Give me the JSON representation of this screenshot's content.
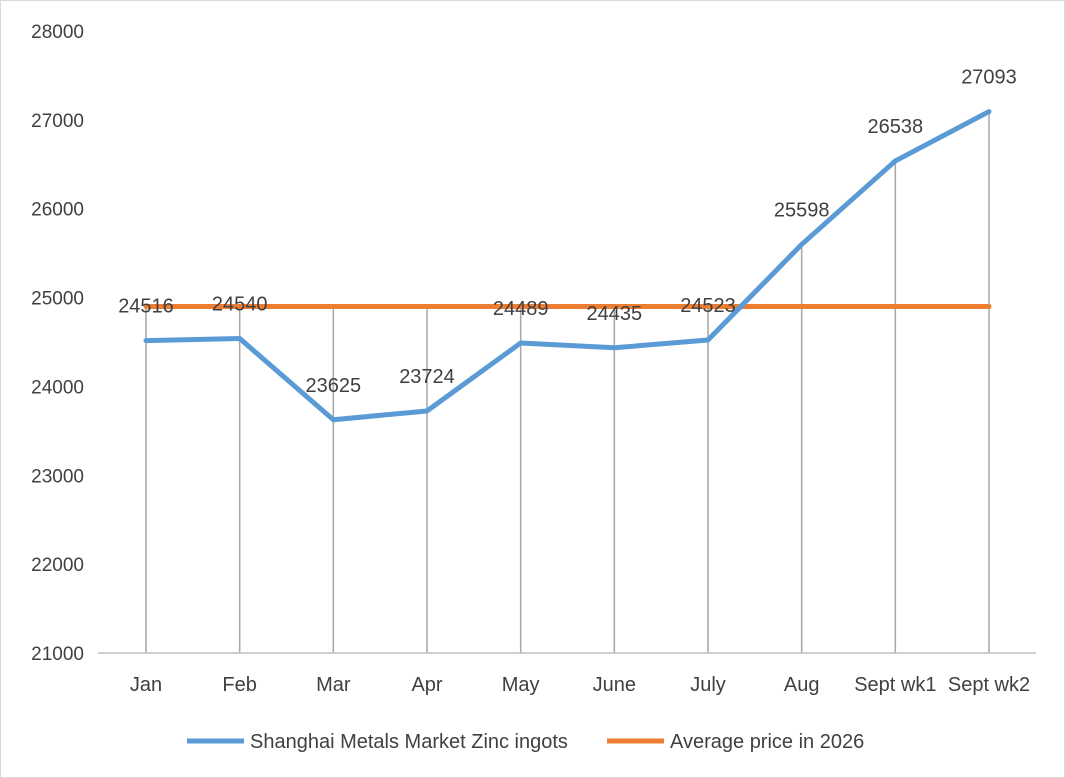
{
  "chart_data": {
    "type": "line",
    "title": "",
    "xlabel": "",
    "ylabel": "",
    "categories": [
      "Jan",
      "Feb",
      "Mar",
      "Apr",
      "May",
      "June",
      "July",
      "Aug",
      "Sept wk1",
      "Sept wk2"
    ],
    "series": [
      {
        "name": "Shanghai Metals Market Zinc ingots",
        "color": "#5b9bd5",
        "values": [
          24516,
          24540,
          23625,
          23724,
          24489,
          24435,
          24523,
          25598,
          26538,
          27093
        ],
        "data_labels": true
      },
      {
        "name": "Average price in 2026",
        "color": "#ed7d31",
        "values": [
          24900,
          24900,
          24900,
          24900,
          24900,
          24900,
          24900,
          24900,
          24900,
          24900
        ],
        "data_labels": false
      }
    ],
    "ylim": [
      21000,
      28000
    ],
    "yticks": [
      "21000",
      "22000",
      "23000",
      "24000",
      "25000",
      "26000",
      "27000",
      "28000"
    ],
    "grid": "vertical drop lines",
    "legend": "bottom"
  }
}
